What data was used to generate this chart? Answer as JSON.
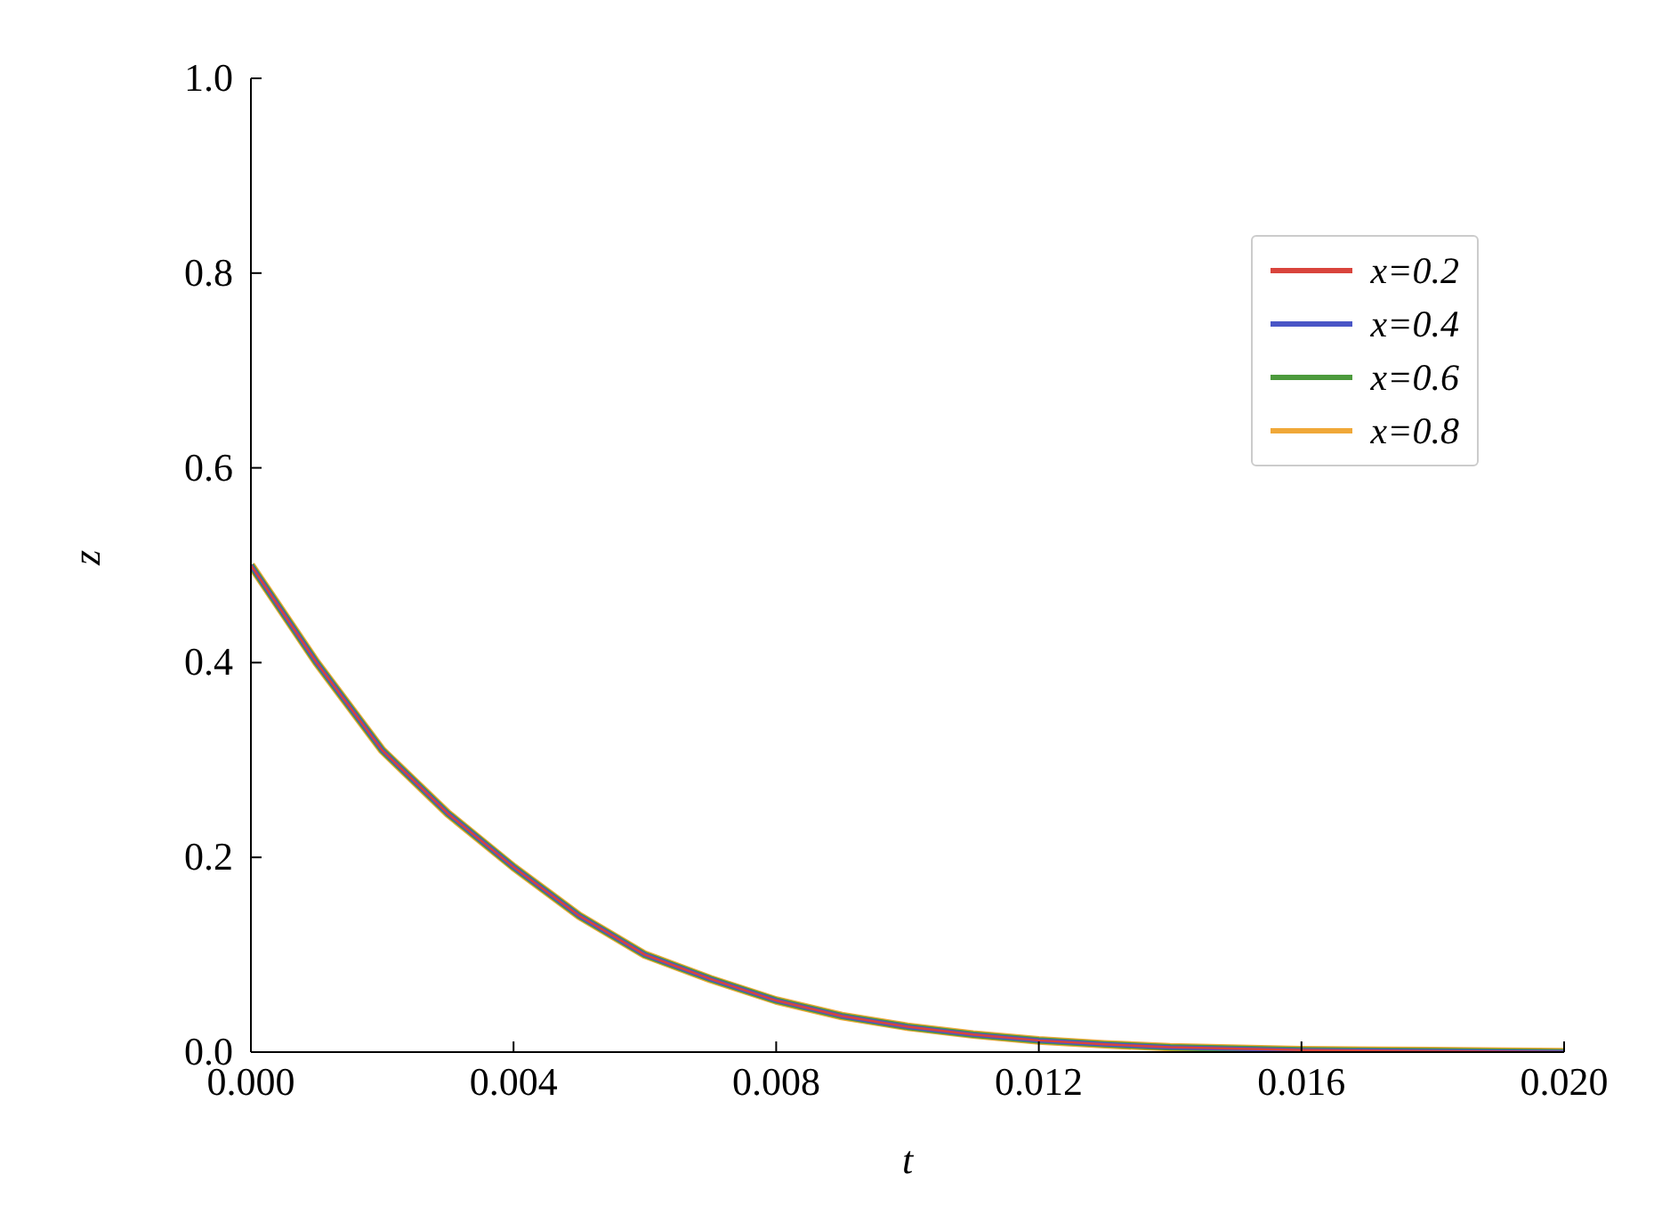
{
  "chart_data": {
    "type": "line",
    "xlabel": "t",
    "ylabel": "z",
    "x": [
      0,
      0.001,
      0.002,
      0.003,
      0.004,
      0.005,
      0.006,
      0.007,
      0.008,
      0.009,
      0.01,
      0.011,
      0.012,
      0.013,
      0.014,
      0.016,
      0.018,
      0.02
    ],
    "series": [
      {
        "name": "x=0.2",
        "color": "#d9443c",
        "values": [
          0.5,
          0.4,
          0.31,
          0.245,
          0.19,
          0.14,
          0.1,
          0.075,
          0.053,
          0.037,
          0.026,
          0.018,
          0.012,
          0.008,
          0.005,
          0.002,
          0.001,
          0
        ]
      },
      {
        "name": "x=0.4",
        "color": "#4a56c6",
        "values": [
          0.5,
          0.4,
          0.31,
          0.245,
          0.19,
          0.14,
          0.1,
          0.075,
          0.053,
          0.037,
          0.026,
          0.018,
          0.012,
          0.008,
          0.005,
          0.002,
          0.001,
          0
        ]
      },
      {
        "name": "x=0.6",
        "color": "#4c9a3c",
        "values": [
          0.5,
          0.4,
          0.31,
          0.245,
          0.19,
          0.14,
          0.1,
          0.075,
          0.053,
          0.037,
          0.026,
          0.018,
          0.012,
          0.008,
          0.005,
          0.002,
          0.001,
          0
        ]
      },
      {
        "name": "x=0.8",
        "color": "#f0a838",
        "values": [
          0.5,
          0.4,
          0.31,
          0.245,
          0.19,
          0.14,
          0.1,
          0.075,
          0.053,
          0.037,
          0.026,
          0.018,
          0.012,
          0.008,
          0.005,
          0.002,
          0.001,
          0
        ]
      }
    ],
    "xlim": [
      0,
      0.02
    ],
    "xticks": [
      {
        "value": 0,
        "label": "0.000"
      },
      {
        "value": 0.004,
        "label": "0.004"
      },
      {
        "value": 0.008,
        "label": "0.008"
      },
      {
        "value": 0.012,
        "label": "0.012"
      },
      {
        "value": 0.016,
        "label": "0.016"
      },
      {
        "value": 0.02,
        "label": "0.020"
      }
    ],
    "ylim": [
      0,
      1
    ],
    "yticks": [
      {
        "value": 0,
        "label": "0.0"
      },
      {
        "value": 0.2,
        "label": "0.2"
      },
      {
        "value": 0.4,
        "label": "0.4"
      },
      {
        "value": 0.6,
        "label": "0.6"
      },
      {
        "value": 0.8,
        "label": "0.8"
      },
      {
        "value": 1,
        "label": "1.0"
      }
    ],
    "grid": false,
    "legend": "top right",
    "marker": "none",
    "line_style": "solid"
  }
}
